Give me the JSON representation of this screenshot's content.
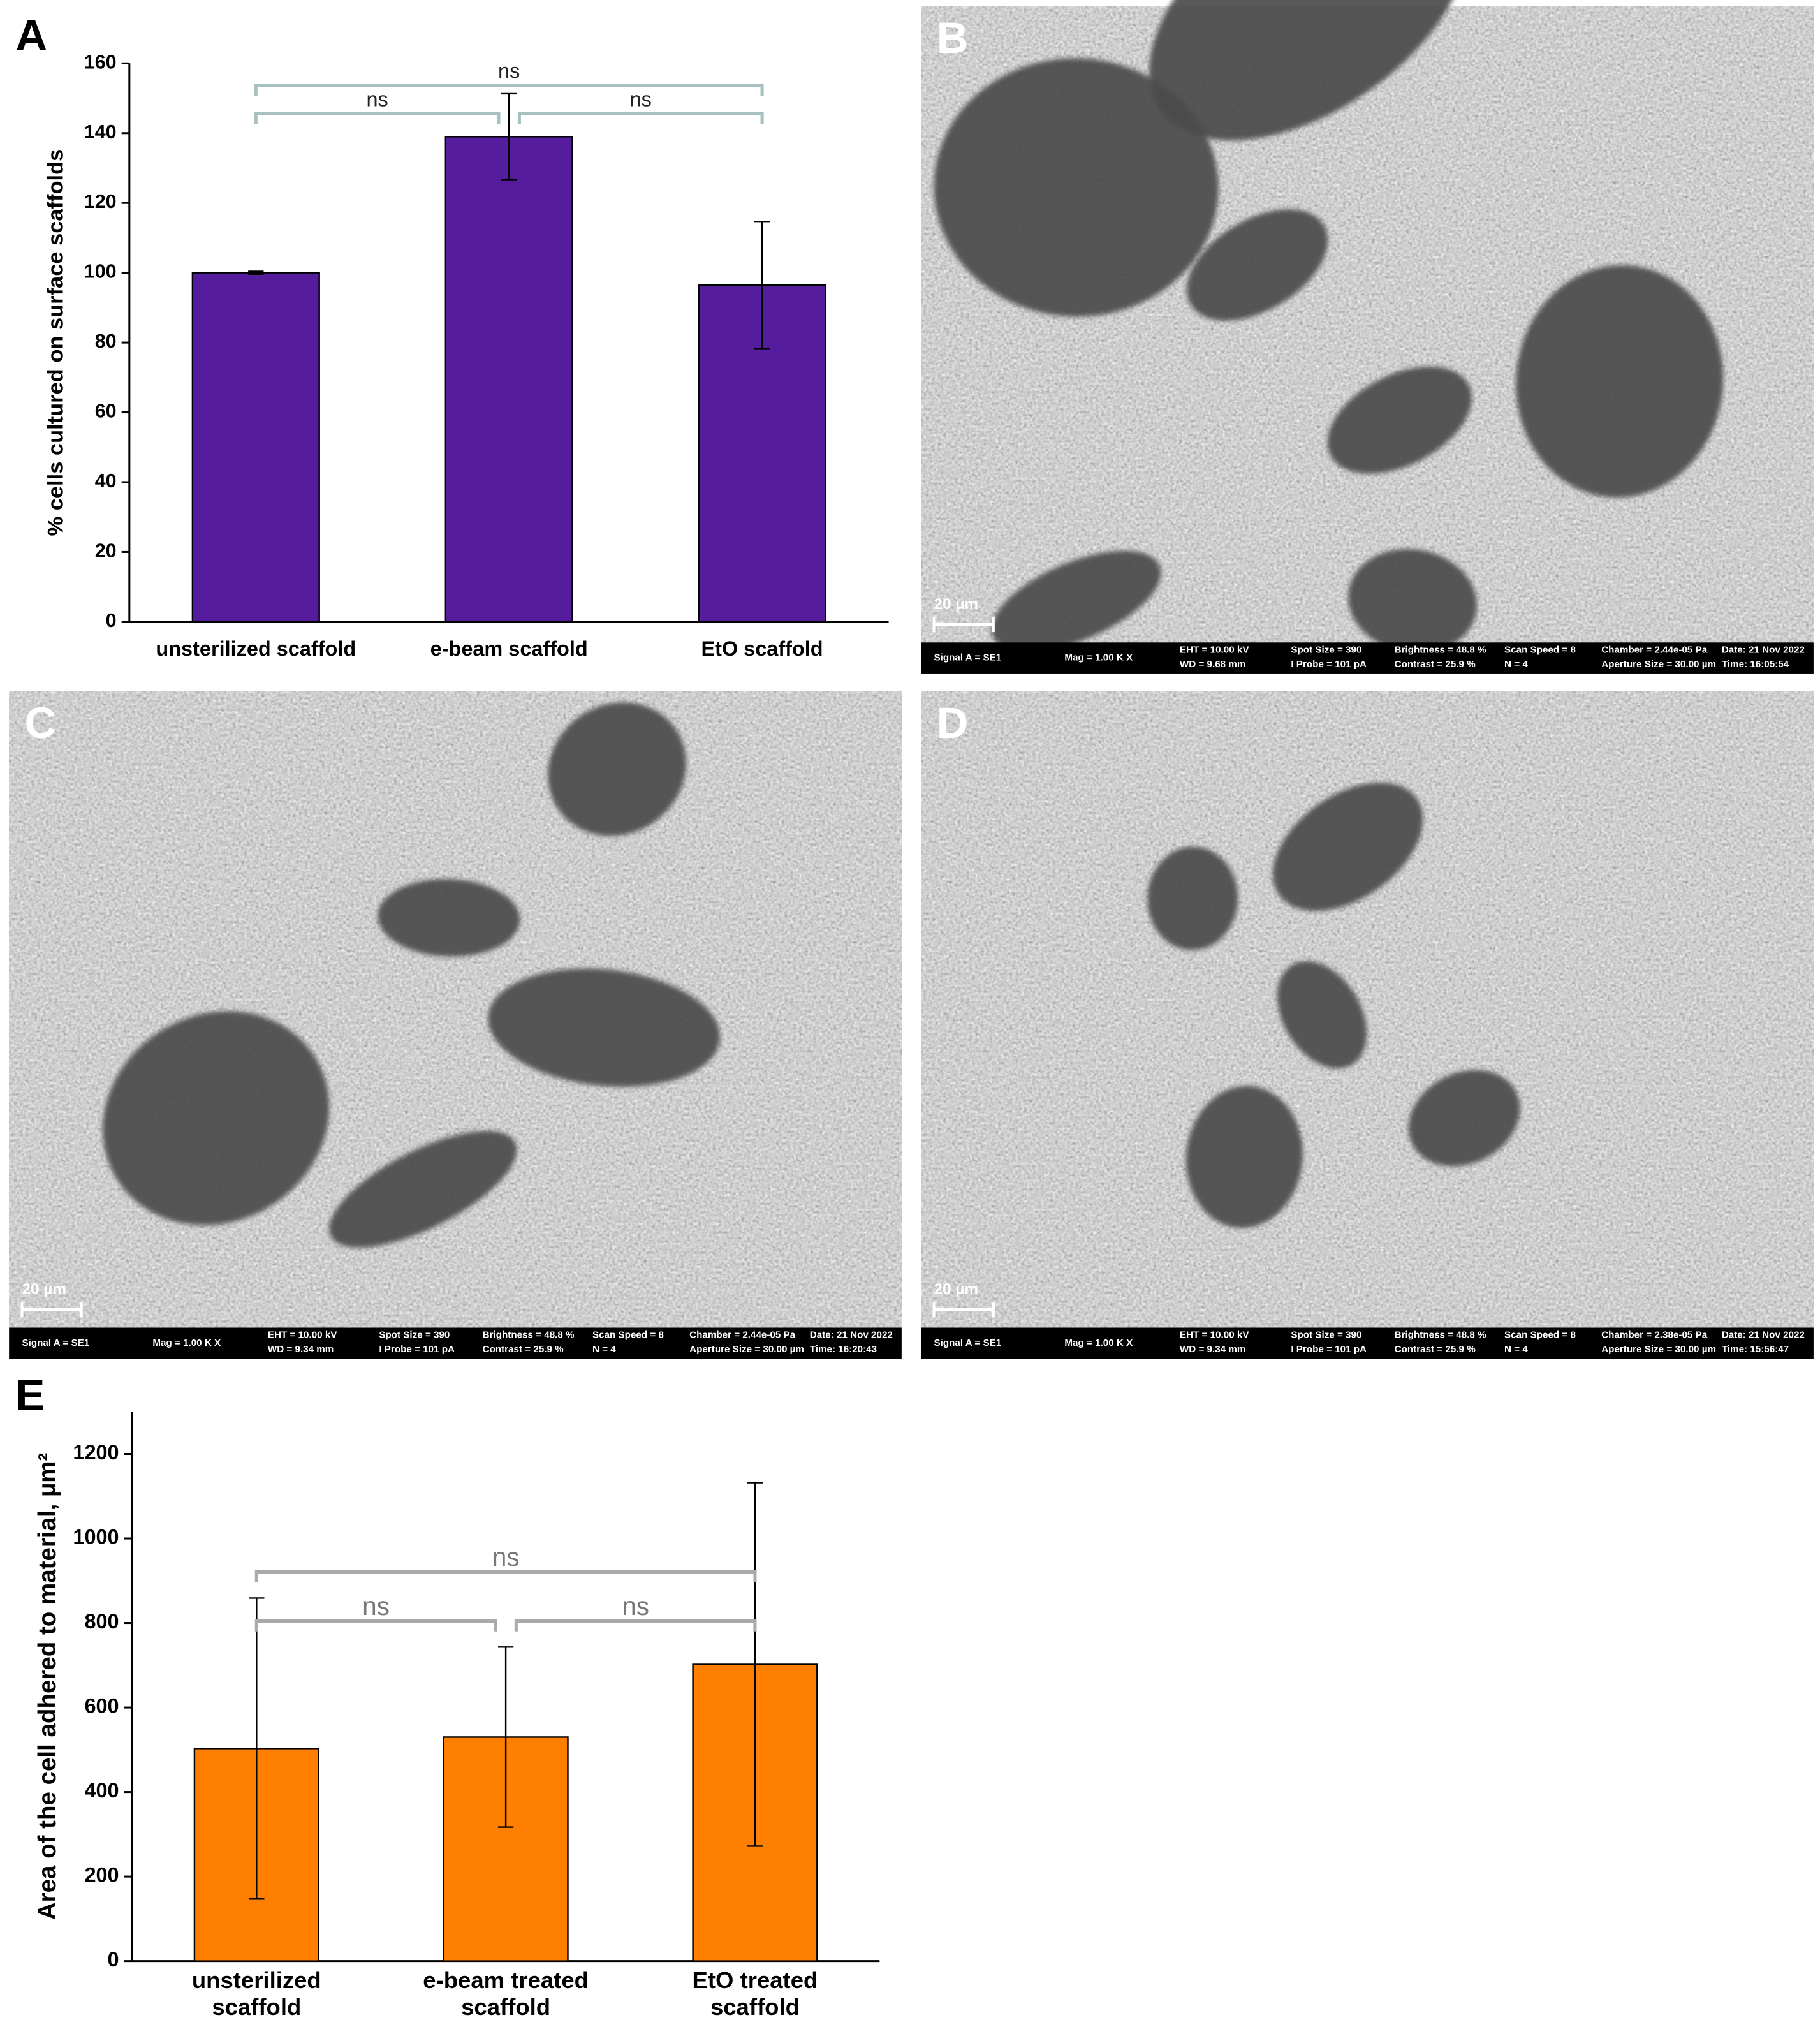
{
  "chart_data": [
    {
      "type": "bar",
      "panel": "A",
      "ylabel": "% cells cultured on surface scaffolds",
      "categories": [
        "unsterilized scaffold",
        "e-beam scaffold",
        "EtO scaffold"
      ],
      "values": [
        100,
        139,
        96.5
      ],
      "errors": [
        0.4,
        12.3,
        18.2
      ],
      "color": "#561c9e",
      "ylim": [
        0,
        160
      ],
      "yticks": [
        0,
        20,
        40,
        60,
        80,
        100,
        120,
        140,
        160
      ],
      "annotations": [
        "ns",
        "ns",
        "ns"
      ]
    },
    {
      "type": "bar",
      "panel": "E",
      "ylabel": "Area of the cell adhered to material, µm²",
      "categories": [
        [
          "unsterilized",
          "scaffold"
        ],
        [
          "e-beam treated",
          "scaffold"
        ],
        [
          "EtO treated",
          "scaffold"
        ]
      ],
      "values": [
        503,
        530,
        702
      ],
      "errors": [
        356,
        213,
        430
      ],
      "color": "#ff7f00",
      "ylim": [
        0,
        1300
      ],
      "yticks": [
        0,
        200,
        400,
        600,
        800,
        1000,
        1200
      ],
      "annotations": [
        "ns",
        "ns",
        "ns"
      ]
    }
  ],
  "panels": [
    {
      "label": "B",
      "scale_bar": "20 µm",
      "info": [
        [
          "Signal A = SE1"
        ],
        [
          "Mag =  1.00 K X"
        ],
        [
          "EHT = 10.00 kV",
          "WD = 9.68 mm"
        ],
        [
          "Spot Size = 390",
          "I Probe =  101 pA"
        ],
        [
          "Brightness =  48.8 %",
          "Contrast =  25.9 %"
        ],
        [
          "Scan Speed = 8",
          "N = 4"
        ],
        [
          "Chamber = 2.44e-05 Pa",
          "Aperture Size = 30.00 µm"
        ],
        [
          "Date: 21 Nov 2022",
          "Time: 16:05:54"
        ]
      ]
    },
    {
      "label": "C",
      "scale_bar": "20 µm",
      "info": [
        [
          "Signal A = SE1"
        ],
        [
          "Mag =  1.00 K X"
        ],
        [
          "EHT = 10.00 kV",
          "WD = 9.34 mm"
        ],
        [
          "Spot Size = 390",
          "I Probe =  101 pA"
        ],
        [
          "Brightness =  48.8 %",
          "Contrast =  25.9 %"
        ],
        [
          "Scan Speed = 8",
          "N = 4"
        ],
        [
          "Chamber = 2.44e-05 Pa",
          "Aperture Size = 30.00 µm"
        ],
        [
          "Date: 21 Nov 2022",
          "Time: 16:20:43"
        ]
      ]
    },
    {
      "label": "D",
      "scale_bar": "20 µm",
      "info": [
        [
          "Signal A = SE1"
        ],
        [
          "Mag =  1.00 K X"
        ],
        [
          "EHT = 10.00 kV",
          "WD = 9.34 mm"
        ],
        [
          "Spot Size = 390",
          "I Probe =  101 pA"
        ],
        [
          "Brightness =  48.8 %",
          "Contrast =  25.9 %"
        ],
        [
          "Scan Speed = 8",
          "N = 4"
        ],
        [
          "Chamber = 2.38e-05 Pa",
          "Aperture Size = 30.00 µm"
        ],
        [
          "Date: 21 Nov 2022",
          "Time: 15:56:47"
        ]
      ]
    }
  ]
}
